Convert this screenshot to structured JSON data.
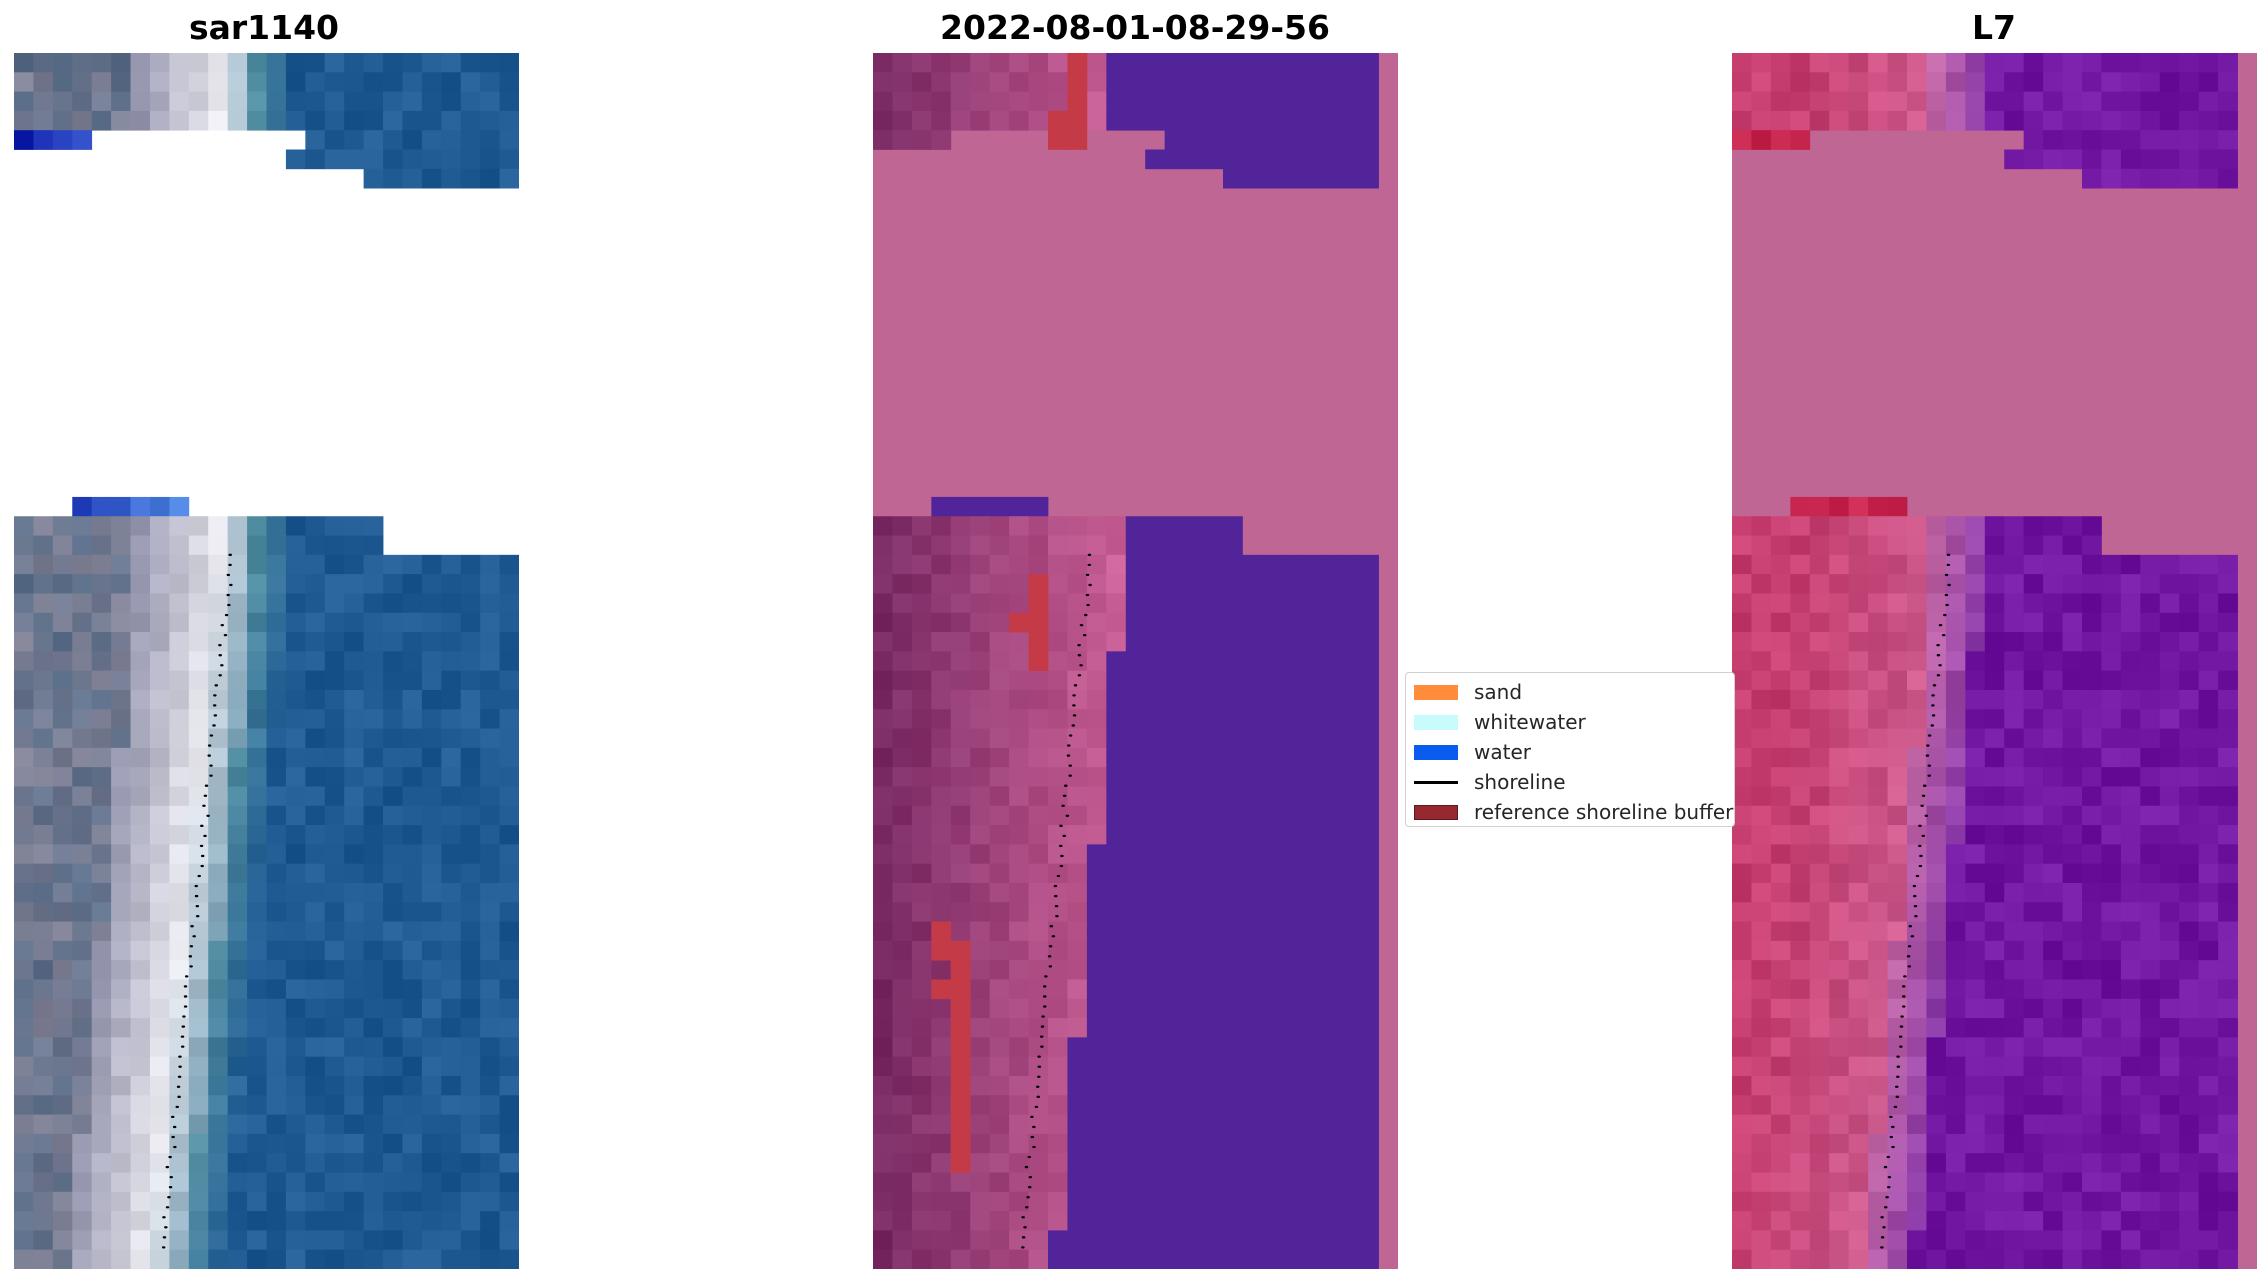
{
  "panels": [
    {
      "title": "sar1140",
      "palette": "rgb"
    },
    {
      "title": "2022-08-01-08-29-56",
      "palette": "class"
    },
    {
      "title": "L7",
      "palette": "index"
    }
  ],
  "legend": {
    "items": [
      {
        "label": "sand",
        "color": "#ff8c3a",
        "kind": "patch"
      },
      {
        "label": "whitewater",
        "color": "#c8fbfb",
        "kind": "patch"
      },
      {
        "label": "water",
        "color": "#0a5cf0",
        "kind": "patch"
      },
      {
        "label": "shoreline",
        "color": "#000000",
        "kind": "line"
      },
      {
        "label": "reference shoreline buffer",
        "color": "#96282f",
        "kind": "patch"
      }
    ]
  },
  "colors": {
    "nodata_overlay": "#bf6694",
    "water_class": "#52249a",
    "sand_class": "#7a2a63",
    "buffer": "#c43b47",
    "rgb_water": "#1f5a93",
    "rgb_beach": "#e8e8ee",
    "index_sand": "#c53e6f",
    "index_water": "#7116a0"
  }
}
